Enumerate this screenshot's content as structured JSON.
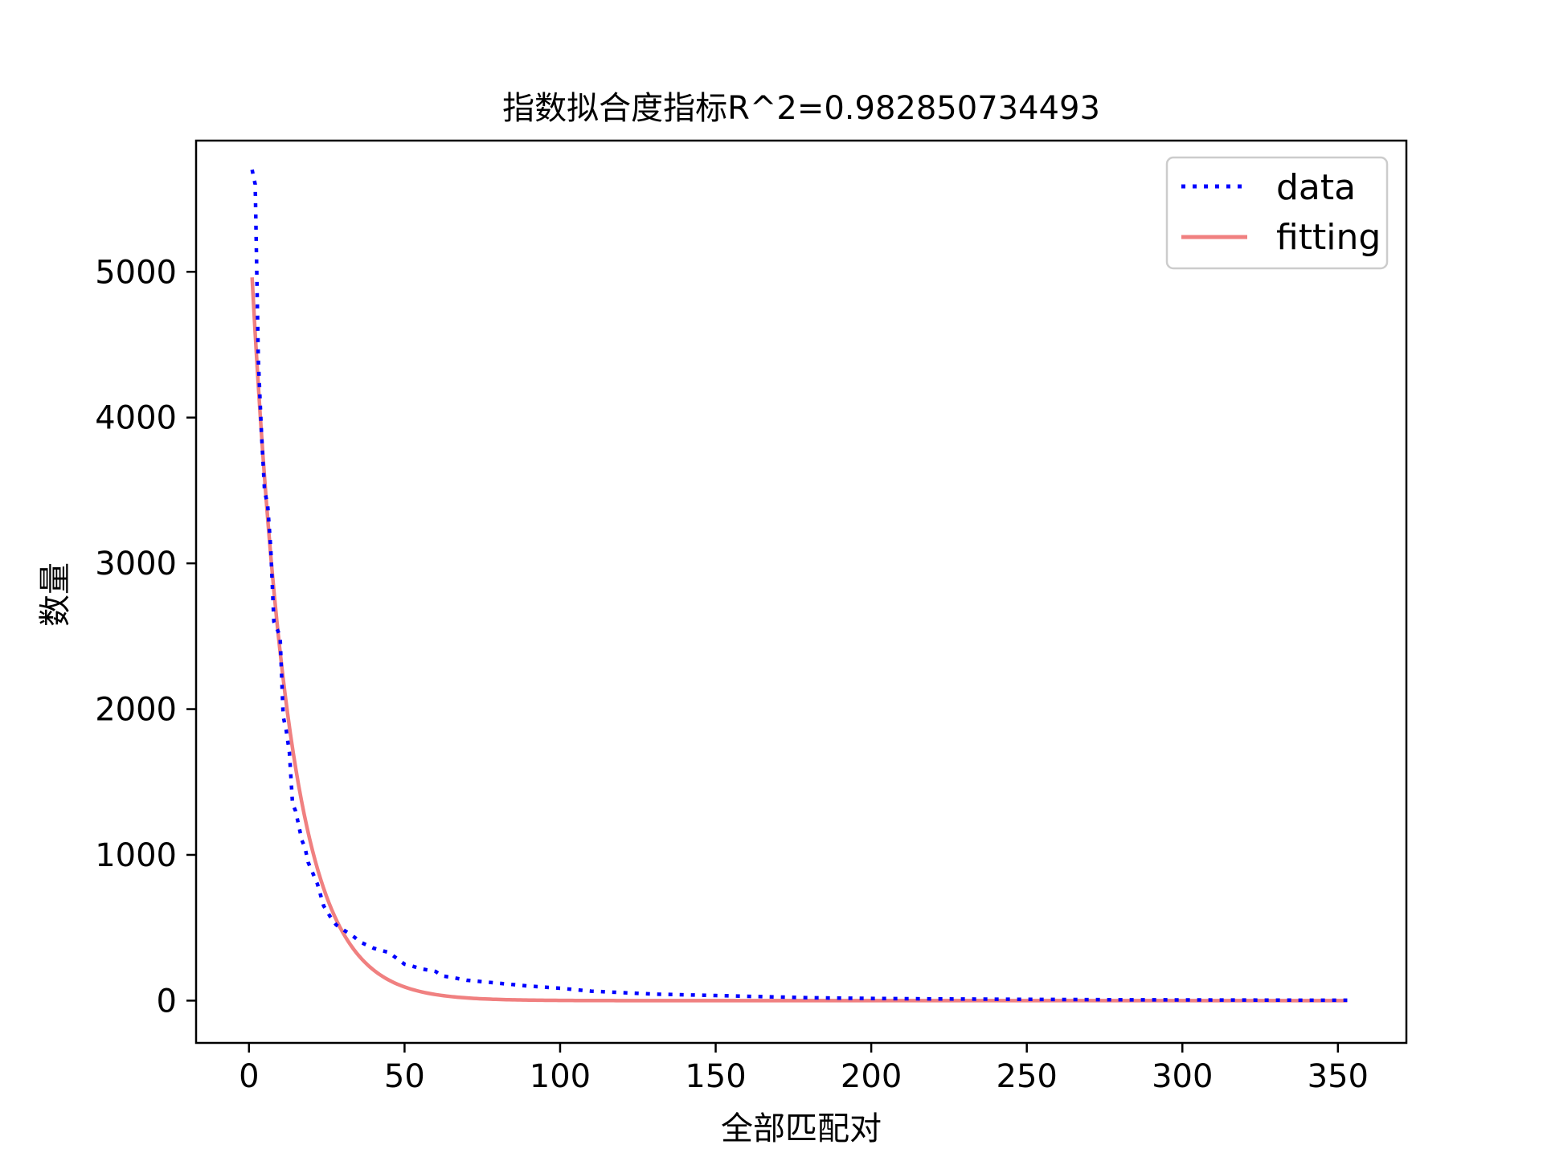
{
  "chart_data": {
    "type": "line",
    "title": "指数拟合度指标R^2=0.982850734493",
    "xlabel": "全部匹配对",
    "ylabel": "数量",
    "xlim": [
      -17,
      372
    ],
    "ylim": [
      -290,
      5900
    ],
    "xticks": [
      0,
      50,
      100,
      150,
      200,
      250,
      300,
      350
    ],
    "yticks": [
      0,
      1000,
      2000,
      3000,
      4000,
      5000
    ],
    "grid": false,
    "legend_position": "top-right",
    "series": [
      {
        "name": "data",
        "style": "dotted",
        "color": "#0000ff",
        "x": [
          1,
          2,
          3,
          4,
          5,
          6,
          7,
          8,
          9,
          10,
          11,
          12,
          13,
          14,
          15,
          16,
          17,
          18,
          19,
          20,
          22,
          24,
          26,
          28,
          30,
          33,
          36,
          40,
          45,
          50,
          52,
          55,
          60,
          62,
          65,
          70,
          80,
          90,
          100,
          110,
          120,
          130,
          140,
          150,
          160,
          170,
          180,
          200,
          220,
          240,
          260,
          280,
          300,
          320,
          340,
          353
        ],
        "y": [
          5700,
          5600,
          4400,
          3900,
          3500,
          3400,
          3100,
          2600,
          2550,
          2500,
          1950,
          1850,
          1700,
          1350,
          1300,
          1200,
          1100,
          1050,
          950,
          900,
          800,
          650,
          580,
          520,
          490,
          450,
          400,
          360,
          330,
          250,
          240,
          220,
          200,
          170,
          160,
          140,
          120,
          100,
          85,
          65,
          55,
          45,
          40,
          35,
          30,
          25,
          20,
          15,
          12,
          10,
          8,
          6,
          5,
          4,
          3,
          3
        ]
      },
      {
        "name": "fitting",
        "style": "solid",
        "color": "#f08080",
        "model": "exponential",
        "a": 5380,
        "b": 0.081,
        "x_range": [
          1,
          353
        ]
      }
    ]
  }
}
